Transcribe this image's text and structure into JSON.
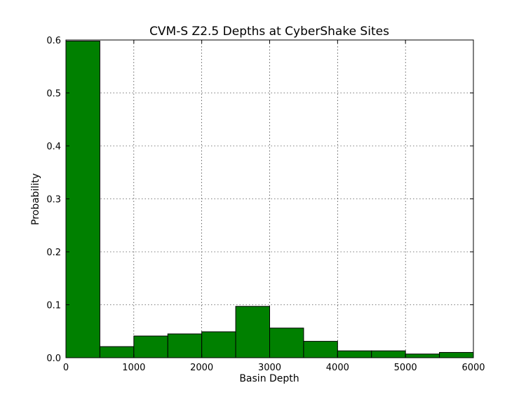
{
  "chart_data": {
    "type": "bar",
    "title": "CVM-S Z2.5 Depths at CyberShake Sites",
    "xlabel": "Basin Depth",
    "ylabel": "Probability",
    "xlim": [
      0,
      6000
    ],
    "ylim": [
      0,
      0.6
    ],
    "x_ticks": [
      0,
      1000,
      2000,
      3000,
      4000,
      5000,
      6000
    ],
    "x_tick_labels": [
      "0",
      "1000",
      "2000",
      "3000",
      "4000",
      "5000",
      "6000"
    ],
    "y_ticks": [
      0.0,
      0.1,
      0.2,
      0.3,
      0.4,
      0.5,
      0.6
    ],
    "y_tick_labels": [
      "0.0",
      "0.1",
      "0.2",
      "0.3",
      "0.4",
      "0.5",
      "0.6"
    ],
    "grid": true,
    "bin_edges": [
      0,
      500,
      1000,
      1500,
      2000,
      2500,
      3000,
      3500,
      4000,
      4500,
      5000,
      5500,
      6000
    ],
    "values": [
      0.598,
      0.021,
      0.041,
      0.045,
      0.049,
      0.097,
      0.056,
      0.031,
      0.013,
      0.013,
      0.007,
      0.01
    ],
    "bar_color": "#008000",
    "edge_color": "#000000"
  }
}
